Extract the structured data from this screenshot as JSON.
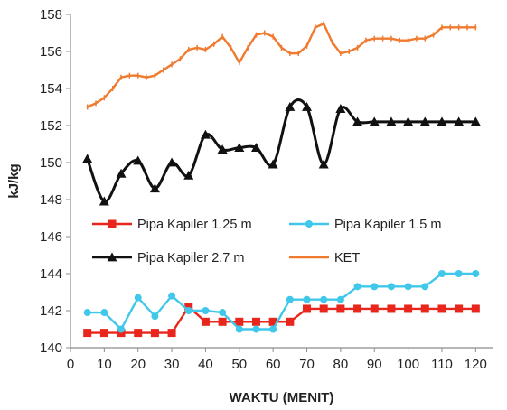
{
  "chart_data": {
    "type": "line",
    "xlabel": "WAKTU (MENIT)",
    "ylabel": "kJ/kg",
    "xlim": [
      0,
      125
    ],
    "ylim": [
      140,
      158
    ],
    "xticks": [
      0,
      10,
      20,
      30,
      40,
      50,
      60,
      70,
      80,
      90,
      100,
      110,
      120
    ],
    "yticks": [
      140,
      142,
      144,
      146,
      148,
      150,
      152,
      154,
      156,
      158
    ],
    "grid": false,
    "legend_position": "inside-lower-middle",
    "x": [
      5,
      10,
      15,
      20,
      25,
      30,
      35,
      40,
      45,
      50,
      55,
      60,
      65,
      70,
      75,
      80,
      85,
      90,
      95,
      100,
      105,
      110,
      115,
      120
    ],
    "series": [
      {
        "name": "Pipa Kapiler 1.25 m",
        "color": "#e8261c",
        "marker": "square",
        "smooth": false,
        "values": [
          140.8,
          140.8,
          140.8,
          140.8,
          140.8,
          140.8,
          142.2,
          141.4,
          141.4,
          141.4,
          141.4,
          141.4,
          141.4,
          142.1,
          142.1,
          142.1,
          142.1,
          142.1,
          142.1,
          142.1,
          142.1,
          142.1,
          142.1,
          142.1
        ]
      },
      {
        "name": "Pipa Kapiler 1.5 m",
        "color": "#3fc8ea",
        "marker": "circle",
        "smooth": false,
        "values": [
          141.9,
          141.9,
          141.0,
          142.7,
          141.7,
          142.8,
          142.0,
          142.0,
          141.9,
          141.0,
          141.0,
          141.0,
          142.6,
          142.6,
          142.6,
          142.6,
          143.3,
          143.3,
          143.3,
          143.3,
          143.3,
          144.0,
          144.0,
          144.0
        ]
      },
      {
        "name": "Pipa Kapiler 2.7 m",
        "color": "#111111",
        "marker": "triangle",
        "smooth": true,
        "values": [
          150.2,
          147.9,
          149.4,
          150.1,
          148.6,
          150.0,
          149.3,
          151.5,
          150.7,
          150.8,
          150.8,
          149.9,
          153.0,
          153.0,
          149.9,
          152.9,
          152.2,
          152.2,
          152.2,
          152.2,
          152.2,
          152.2,
          152.2,
          152.2
        ]
      },
      {
        "name": "KET",
        "color": "#f07a2e",
        "marker": "none",
        "smooth": false,
        "x": [
          5,
          7.5,
          10,
          12.5,
          15,
          17.5,
          20,
          22.5,
          25,
          27.5,
          30,
          32.5,
          35,
          37.5,
          40,
          42.5,
          45,
          47.5,
          50,
          52.5,
          55,
          57.5,
          60,
          62.5,
          65,
          67.5,
          70,
          72.5,
          75,
          77.5,
          80,
          82.5,
          85,
          87.5,
          90,
          92.5,
          95,
          97.5,
          100,
          102.5,
          105,
          107.5,
          110,
          112.5,
          115,
          117.5,
          120
        ],
        "values": [
          153.0,
          153.2,
          153.5,
          154.0,
          154.6,
          154.7,
          154.7,
          154.6,
          154.7,
          155.0,
          155.3,
          155.6,
          156.1,
          156.2,
          156.1,
          156.4,
          156.8,
          156.2,
          155.4,
          156.2,
          156.9,
          157.0,
          156.8,
          156.2,
          155.9,
          155.9,
          156.3,
          157.3,
          157.5,
          156.5,
          155.9,
          156.0,
          156.2,
          156.6,
          156.7,
          156.7,
          156.7,
          156.6,
          156.6,
          156.7,
          156.7,
          156.9,
          157.3,
          157.3,
          157.3,
          157.3,
          157.3
        ]
      }
    ]
  }
}
